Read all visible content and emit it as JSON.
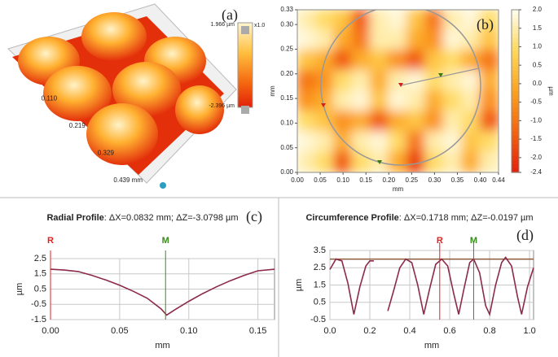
{
  "chart_data": [
    {
      "type": "surface3d",
      "panel_label": "(a)",
      "xlim": [
        0,
        0.439
      ],
      "xticks": [
        {
          "value": 0.11,
          "label": "0.110"
        },
        {
          "value": 0.219,
          "label": "0.219"
        },
        {
          "value": 0.329,
          "label": "0.329"
        },
        {
          "value": 0.439,
          "label": "0.439 mm"
        }
      ],
      "zlim": [
        -2.396,
        1.966
      ],
      "zticks": [
        {
          "value": 1.966,
          "label": "1.966 µm"
        },
        {
          "value": -2.396,
          "label": "-2.396 µm"
        }
      ],
      "zoom_label": "x1.0"
    },
    {
      "type": "heatmap",
      "panel_label": "(b)",
      "xlabel": "mm",
      "ylabel": "mm",
      "colorbar_label": "µm",
      "xlim": [
        0,
        0.44
      ],
      "ylim": [
        0,
        0.33
      ],
      "xticks": [
        {
          "value": 0,
          "label": "0.00"
        },
        {
          "value": 0.05,
          "label": "0.05"
        },
        {
          "value": 0.1,
          "label": "0.10"
        },
        {
          "value": 0.15,
          "label": "0.15"
        },
        {
          "value": 0.2,
          "label": "0.20"
        },
        {
          "value": 0.25,
          "label": "0.25"
        },
        {
          "value": 0.3,
          "label": "0.30"
        },
        {
          "value": 0.35,
          "label": "0.35"
        },
        {
          "value": 0.4,
          "label": "0.40"
        },
        0.44
      ],
      "yticks": [
        {
          "value": 0,
          "label": "0.00"
        },
        {
          "value": 0.05,
          "label": "0.05"
        },
        {
          "value": 0.1,
          "label": "0.10"
        },
        {
          "value": 0.15,
          "label": "0.15"
        },
        {
          "value": 0.2,
          "label": "0.20"
        },
        {
          "value": 0.25,
          "label": "0.25"
        },
        {
          "value": 0.3,
          "label": "0.30"
        },
        0.33
      ],
      "clim": [
        -2.4,
        2.0
      ],
      "cticks": [
        {
          "value": 2,
          "label": "2.0"
        },
        1.5,
        {
          "value": 1,
          "label": "1.0"
        },
        0.5,
        {
          "value": 0,
          "label": "0.0"
        },
        -0.5,
        {
          "value": -1,
          "label": "-1.0"
        },
        -1.5,
        {
          "value": -2,
          "label": "-2.0"
        },
        -2.4
      ],
      "colorscale": [
        "#e3200b",
        "#f4640f",
        "#fca21e",
        "#ffd95a",
        "#fffdf0"
      ],
      "z": [
        [
          1.5,
          1.0,
          0.5,
          -1.5,
          1.5,
          1.8,
          0.5,
          -1.0,
          1.5,
          1.8,
          1.0
        ],
        [
          1.8,
          1.5,
          0.0,
          -1.0,
          1.5,
          1.5,
          0.0,
          -0.5,
          1.8,
          1.5,
          0.5
        ],
        [
          0.5,
          0.0,
          -1.5,
          0.0,
          0.5,
          -0.5,
          -1.5,
          0.5,
          1.0,
          0.0,
          -1.0
        ],
        [
          -1.0,
          -0.5,
          1.0,
          1.5,
          0.0,
          1.5,
          1.8,
          1.0,
          1.5,
          1.8,
          0.0
        ],
        [
          -0.5,
          0.0,
          1.5,
          1.8,
          0.5,
          1.8,
          1.5,
          0.0,
          1.0,
          1.5,
          -0.5
        ],
        [
          1.0,
          0.5,
          -0.5,
          0.0,
          -1.5,
          0.0,
          0.5,
          -0.5,
          1.5,
          1.0,
          -1.5
        ],
        [
          1.8,
          1.5,
          0.0,
          1.5,
          1.8,
          1.0,
          -1.0,
          1.5,
          1.8,
          0.5,
          1.0
        ],
        [
          1.5,
          1.0,
          -1.5,
          1.0,
          1.5,
          0.0,
          -2.0,
          1.0,
          1.5,
          0.0,
          1.5
        ]
      ]
    },
    {
      "type": "line",
      "panel_label": "(c)",
      "title_bold": "Radial Profile",
      "title": ": ΔX=0.0832 mm; ΔZ=-3.0798 µm",
      "xlabel": "mm",
      "ylabel": "µm",
      "grid": true,
      "markers": [
        {
          "label": "R",
          "x": 0,
          "color": "#e02020"
        },
        {
          "label": "M",
          "x": 0.0832,
          "color": "#3a8a20"
        }
      ],
      "xlim": [
        0,
        0.162
      ],
      "ylim": [
        -1.5,
        2.5
      ],
      "xticks": [
        {
          "value": 0,
          "label": "0.00"
        },
        {
          "value": 0.05,
          "label": "0.05"
        },
        {
          "value": 0.1,
          "label": "0.10"
        },
        0.15
      ],
      "yticks": [
        2.5,
        1.5,
        0.5,
        -0.5,
        -1.5
      ],
      "series": [
        {
          "color": "#8b2a4a",
          "x": [
            0,
            0.01,
            0.02,
            0.03,
            0.04,
            0.05,
            0.06,
            0.07,
            0.08,
            0.084,
            0.09,
            0.1,
            0.11,
            0.12,
            0.13,
            0.14,
            0.15,
            0.162
          ],
          "values": [
            1.8,
            1.75,
            1.65,
            1.4,
            1.1,
            0.75,
            0.35,
            -0.1,
            -0.8,
            -1.2,
            -0.85,
            -0.3,
            0.2,
            0.65,
            1.05,
            1.4,
            1.7,
            1.8
          ]
        }
      ]
    },
    {
      "type": "line",
      "panel_label": "(d)",
      "title_bold": "Circumference Profile",
      "title": ": ΔX=0.1718 mm; ΔZ=-0.0197 µm",
      "xlabel": "mm",
      "ylabel": "µm",
      "grid": true,
      "hline": 3,
      "hline_color": "#8b5a3a",
      "markers": [
        {
          "label": "R",
          "x": 0.55,
          "color": "#e02020"
        },
        {
          "label": "M",
          "x": 0.72,
          "color": "#3a8a20"
        }
      ],
      "xlim": [
        0,
        1.02
      ],
      "ylim": [
        -0.5,
        3.5
      ],
      "xticks": [
        {
          "value": 0,
          "label": "0.0"
        },
        0.2,
        0.4,
        0.6,
        0.8,
        {
          "value": 1,
          "label": "1.0"
        }
      ],
      "yticks": [
        3.5,
        2.5,
        1.5,
        0.5,
        -0.5
      ],
      "series": [
        {
          "color": "#8b2a4a",
          "x": [
            0,
            0.03,
            0.06,
            0.09,
            0.12,
            0.15,
            0.18,
            0.2,
            0.22,
            0.255,
            0.29,
            0.32,
            0.35,
            0.38,
            0.41,
            0.44,
            0.47,
            0.5,
            0.53,
            0.56,
            0.59,
            0.62,
            0.645,
            0.67,
            0.7,
            0.72,
            0.75,
            0.78,
            0.8,
            0.83,
            0.86,
            0.88,
            0.91,
            0.94,
            0.96,
            0.99,
            1.02
          ],
          "values": [
            2.4,
            3.0,
            2.9,
            1.6,
            -0.2,
            1.4,
            2.6,
            2.9,
            2.9,
            null,
            0.0,
            1.2,
            2.5,
            3.0,
            2.8,
            1.5,
            -0.2,
            1.3,
            2.7,
            3.0,
            2.6,
            1.0,
            -0.2,
            1.2,
            2.8,
            3.0,
            2.2,
            0.3,
            -0.2,
            1.5,
            2.8,
            3.1,
            2.6,
            0.8,
            -0.2,
            1.4,
            2.5
          ]
        }
      ]
    }
  ]
}
